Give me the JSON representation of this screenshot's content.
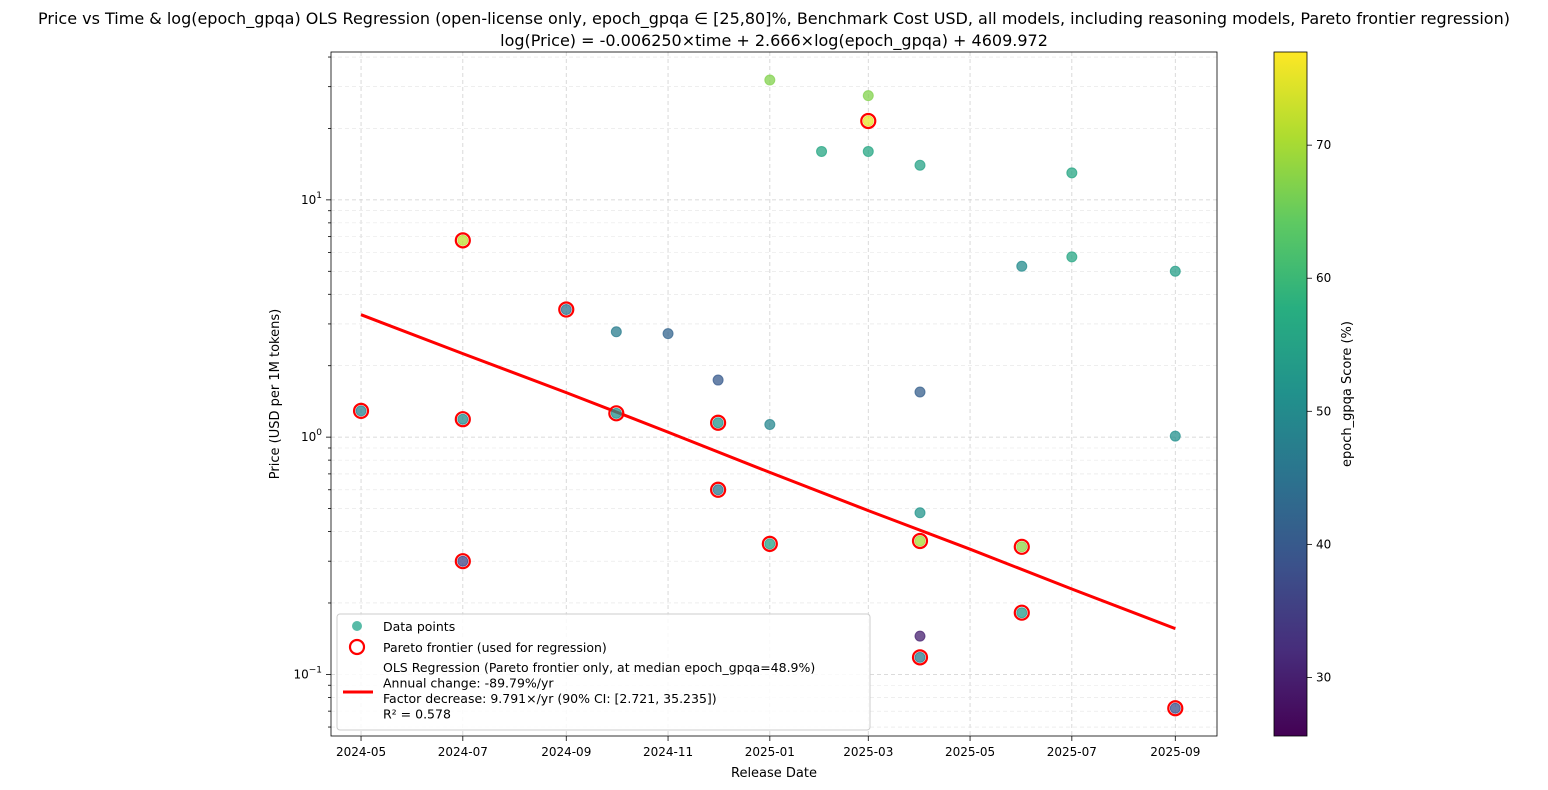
{
  "chart_data": {
    "type": "scatter",
    "title": "Price vs Time & log(epoch_gpqa) OLS Regression (open-license only, epoch_gpqa ∈ [25,80]%, Benchmark Cost USD, all models, including reasoning models, Pareto frontier regression)",
    "subtitle": "log(Price) = -0.006250×time + 2.666×log(epoch_gpqa) + 4609.972",
    "xlabel": "Release Date",
    "ylabel": "Price (USD per 1M tokens)",
    "yscale": "log",
    "xlim": [
      "2024-04-13",
      "2025-09-26"
    ],
    "ylim": [
      0.055,
      42
    ],
    "grid": true,
    "x_ticks": [
      "2024-05",
      "2024-07",
      "2024-09",
      "2024-11",
      "2025-01",
      "2025-03",
      "2025-05",
      "2025-07",
      "2025-09"
    ],
    "y_ticks": [
      {
        "value": 0.1,
        "base": "10",
        "exp": "−1"
      },
      {
        "value": 1,
        "base": "10",
        "exp": "0"
      },
      {
        "value": 10,
        "base": "10",
        "exp": "1"
      }
    ],
    "colorbar": {
      "label": "epoch_gpqa Score (%)",
      "min": 25.6,
      "max": 77,
      "ticks": [
        30,
        40,
        50,
        60,
        70
      ],
      "colormap": "viridis"
    },
    "legend": {
      "placement": "lower-left",
      "items": [
        {
          "kind": "dot",
          "label": "Data points"
        },
        {
          "kind": "ring",
          "label": "Pareto frontier (used for regression)"
        },
        {
          "kind": "line",
          "lines": [
            "OLS Regression (Pareto frontier only, at median epoch_gpqa=48.9%)",
            "Annual change: -89.79%/yr",
            "Factor decrease: 9.791×/yr (90% CI: [2.721, 35.235])",
            "R² = 0.578"
          ]
        }
      ]
    },
    "series": [
      {
        "name": "Data points",
        "points": [
          {
            "date": "2024-05-01",
            "price": 1.29,
            "score": 48
          },
          {
            "date": "2024-07-01",
            "price": 6.75,
            "score": 72
          },
          {
            "date": "2024-07-01",
            "price": 1.19,
            "score": 50
          },
          {
            "date": "2024-07-01",
            "price": 0.3,
            "score": 36
          },
          {
            "date": "2024-09-01",
            "price": 3.45,
            "score": 45
          },
          {
            "date": "2024-10-01",
            "price": 2.78,
            "score": 47
          },
          {
            "date": "2024-10-01",
            "price": 1.26,
            "score": 51
          },
          {
            "date": "2024-11-01",
            "price": 2.73,
            "score": 42
          },
          {
            "date": "2024-12-01",
            "price": 1.74,
            "score": 40
          },
          {
            "date": "2024-12-01",
            "price": 1.15,
            "score": 52
          },
          {
            "date": "2024-12-01",
            "price": 0.6,
            "score": 46
          },
          {
            "date": "2025-01-01",
            "price": 32.0,
            "score": 67
          },
          {
            "date": "2025-01-01",
            "price": 1.13,
            "score": 49
          },
          {
            "date": "2025-01-01",
            "price": 0.355,
            "score": 55
          },
          {
            "date": "2025-02-01",
            "price": 16.0,
            "score": 56
          },
          {
            "date": "2025-03-01",
            "price": 27.5,
            "score": 67
          },
          {
            "date": "2025-03-01",
            "price": 21.5,
            "score": 75
          },
          {
            "date": "2025-03-01",
            "price": 16.0,
            "score": 56
          },
          {
            "date": "2025-04-01",
            "price": 14.0,
            "score": 55
          },
          {
            "date": "2025-04-01",
            "price": 1.55,
            "score": 41
          },
          {
            "date": "2025-04-01",
            "price": 0.48,
            "score": 52
          },
          {
            "date": "2025-04-01",
            "price": 0.365,
            "score": 70
          },
          {
            "date": "2025-04-01",
            "price": 0.145,
            "score": 30
          },
          {
            "date": "2025-04-01",
            "price": 0.118,
            "score": 47
          },
          {
            "date": "2025-06-01",
            "price": 5.25,
            "score": 50
          },
          {
            "date": "2025-06-01",
            "price": 0.345,
            "score": 68
          },
          {
            "date": "2025-06-01",
            "price": 0.182,
            "score": 53
          },
          {
            "date": "2025-07-01",
            "price": 13.0,
            "score": 56
          },
          {
            "date": "2025-07-01",
            "price": 5.75,
            "score": 56
          },
          {
            "date": "2025-09-01",
            "price": 5.0,
            "score": 54
          },
          {
            "date": "2025-09-01",
            "price": 1.01,
            "score": 51
          },
          {
            "date": "2025-09-01",
            "price": 0.072,
            "score": 38
          }
        ]
      },
      {
        "name": "Pareto frontier (used for regression)",
        "points": [
          {
            "date": "2024-05-01",
            "price": 1.29
          },
          {
            "date": "2024-07-01",
            "price": 6.75
          },
          {
            "date": "2024-07-01",
            "price": 1.19
          },
          {
            "date": "2024-07-01",
            "price": 0.3
          },
          {
            "date": "2024-09-01",
            "price": 3.45
          },
          {
            "date": "2024-10-01",
            "price": 1.26
          },
          {
            "date": "2024-12-01",
            "price": 1.15
          },
          {
            "date": "2024-12-01",
            "price": 0.6
          },
          {
            "date": "2025-01-01",
            "price": 0.355
          },
          {
            "date": "2025-03-01",
            "price": 21.5
          },
          {
            "date": "2025-04-01",
            "price": 0.365
          },
          {
            "date": "2025-04-01",
            "price": 0.118
          },
          {
            "date": "2025-06-01",
            "price": 0.345
          },
          {
            "date": "2025-06-01",
            "price": 0.182
          },
          {
            "date": "2025-09-01",
            "price": 0.072
          }
        ]
      },
      {
        "name": "OLS Regression (Pareto frontier only, at median epoch_gpqa=48.9%)",
        "line": [
          {
            "date": "2024-05-01",
            "price": 3.28
          },
          {
            "date": "2024-07-01",
            "price": 2.25
          },
          {
            "date": "2024-09-01",
            "price": 1.54
          },
          {
            "date": "2024-11-01",
            "price": 1.05
          },
          {
            "date": "2025-01-01",
            "price": 0.71
          },
          {
            "date": "2025-03-01",
            "price": 0.49
          },
          {
            "date": "2025-05-01",
            "price": 0.337
          },
          {
            "date": "2025-07-01",
            "price": 0.229
          },
          {
            "date": "2025-09-01",
            "price": 0.156
          }
        ]
      }
    ]
  }
}
